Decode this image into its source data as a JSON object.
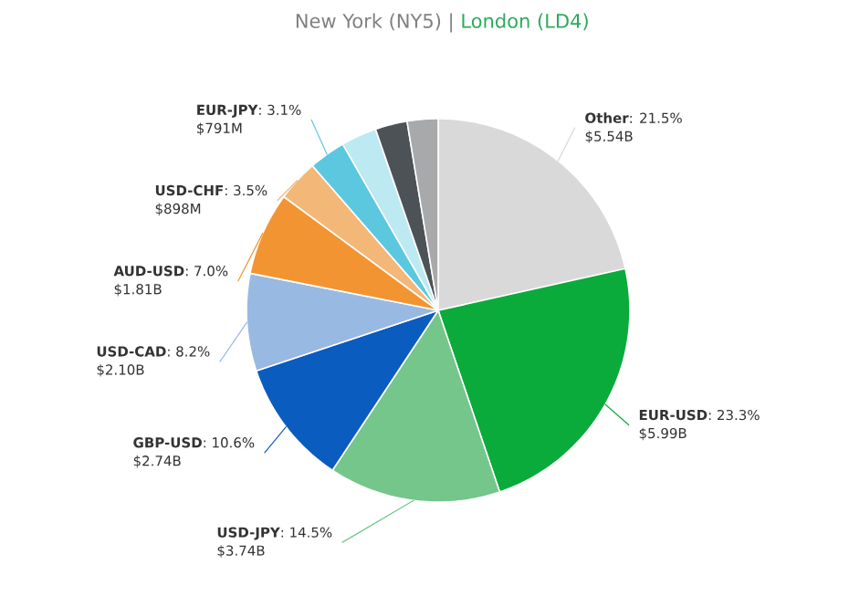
{
  "chart_data": {
    "type": "pie",
    "title": "New York (NY5) |",
    "subtitle": "London (LD4)",
    "categories": [
      "Other",
      "EUR-USD",
      "USD-JPY",
      "GBP-USD",
      "USD-CAD",
      "AUD-USD",
      "USD-CHF",
      "EUR-JPY",
      null,
      null,
      null
    ],
    "values": [
      21.5,
      23.3,
      14.5,
      10.6,
      8.2,
      7.0,
      3.5,
      3.1,
      3.0,
      2.7,
      2.6
    ],
    "value_labels": [
      ": 21.5%",
      ": 23.3%",
      ": 14.5%",
      ": 10.6%",
      ": 8.2%",
      ": 7.0%",
      ": 3.5%",
      ": 3.1%",
      null,
      null,
      null
    ],
    "colors": [
      "#d9d9d9",
      "#0aab3a",
      "#74c68a",
      "#0b5cbf",
      "#98b9e2",
      "#f39433",
      "#f3b777",
      "#5bc8e0",
      "#bde9f3",
      "#4d5257",
      "#a7a9ab"
    ],
    "annotations": [
      {
        "text": "$5.54B",
        "x": "Other"
      },
      {
        "text": "$5.99B",
        "x": "EUR-USD"
      },
      {
        "text": "$3.74B",
        "x": "USD-JPY"
      },
      {
        "text": "$2.74B",
        "x": "GBP-USD"
      },
      {
        "text": "$2.10B",
        "x": "USD-CAD"
      },
      {
        "text": "$1.81B",
        "x": "AUD-USD"
      },
      {
        "text": "$898M",
        "x": "USD-CHF"
      },
      {
        "text": "$791M",
        "x": "EUR-JPY"
      }
    ]
  }
}
